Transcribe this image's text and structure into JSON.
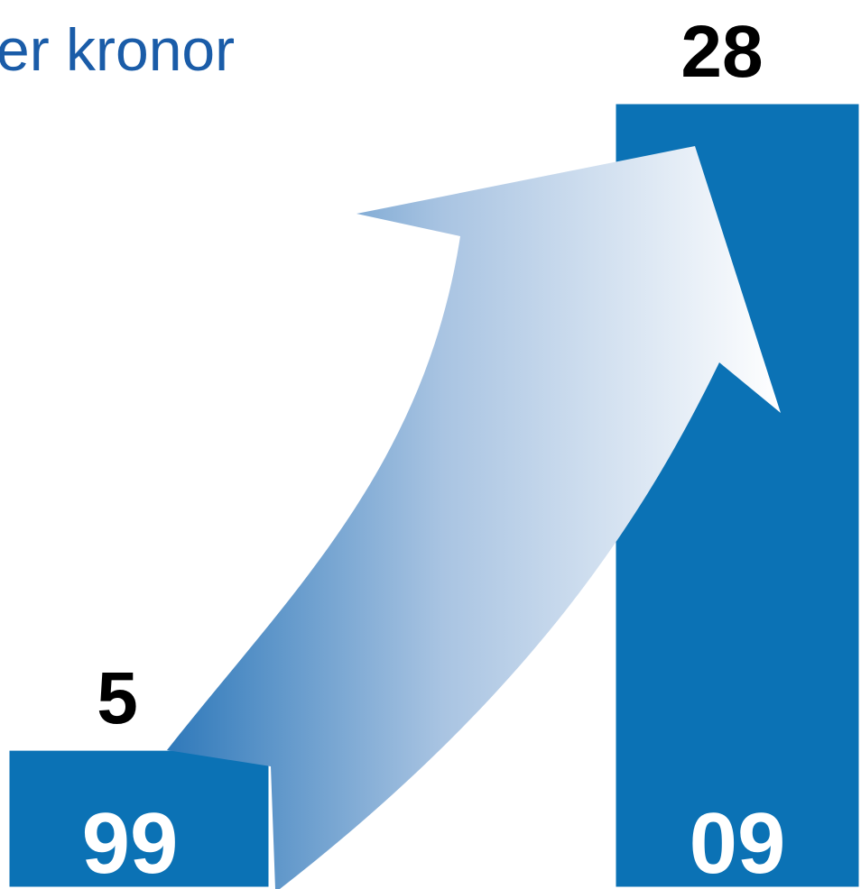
{
  "chart_data": {
    "type": "bar",
    "title": "er kronor",
    "categories": [
      "99",
      "09"
    ],
    "values": [
      5,
      28
    ],
    "color": "#0b72b5",
    "ylim": [
      0,
      28
    ]
  }
}
